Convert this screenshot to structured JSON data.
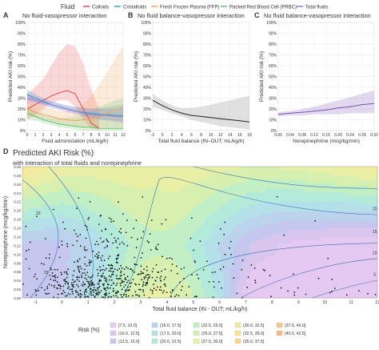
{
  "legend_top": {
    "title": "Fluid",
    "items": [
      {
        "label": "Colloids",
        "color": "#e8474c"
      },
      {
        "label": "Cristalloids",
        "color": "#3aa0c8"
      },
      {
        "label": "Fresh Frozen Plasma (FFP)",
        "color": "#f2a45a"
      },
      {
        "label": "Packed Red Blood Cell (PRBC)",
        "color": "#6cc36a"
      },
      {
        "label": "Total fluids",
        "color": "#9b7ad8"
      }
    ]
  },
  "chart_data": [
    {
      "panel": "A",
      "type": "line",
      "title": "No fluid-vasopressor interaction",
      "xlabel": "Fluid administation (mL/kg/h)",
      "ylabel": "Predicted AKI risk (%)",
      "xlim": [
        0,
        12
      ],
      "ylim": [
        0,
        100
      ],
      "xticks": [
        "0",
        "1",
        "2",
        "3",
        "4",
        "5",
        "6",
        "7",
        "8",
        "9",
        "10",
        "11",
        "12"
      ],
      "yticks": [
        "0%",
        "10%",
        "20%",
        "30%",
        "40%",
        "50%",
        "60%",
        "70%",
        "80%",
        "90%",
        "100%"
      ],
      "series": [
        {
          "name": "Colloids",
          "color": "#e8474c",
          "x": [
            0,
            1,
            2,
            3,
            4,
            5,
            6,
            7,
            8,
            9
          ],
          "y": [
            20,
            24,
            28,
            32,
            35,
            37,
            34,
            20,
            7,
            2
          ],
          "lower": [
            10,
            14,
            20,
            25,
            28,
            28,
            22,
            10,
            2,
            0
          ],
          "upper": [
            34,
            40,
            48,
            60,
            72,
            80,
            78,
            62,
            38,
            20
          ]
        },
        {
          "name": "Cristalloids",
          "color": "#3aa0c8",
          "x": [
            0,
            1,
            2,
            3,
            4,
            5,
            6,
            7,
            8,
            9,
            10,
            11,
            12
          ],
          "y": [
            33,
            30,
            27,
            24,
            22,
            20,
            18,
            17,
            16,
            15,
            15,
            14,
            14
          ],
          "lower": [
            28,
            26,
            24,
            22,
            20,
            18,
            16,
            14,
            12,
            11,
            10,
            9,
            8
          ],
          "upper": [
            38,
            34,
            30,
            27,
            25,
            23,
            22,
            21,
            21,
            21,
            22,
            23,
            24
          ]
        },
        {
          "name": "Fresh Frozen Plasma (FFP)",
          "color": "#f2a45a",
          "x": [
            0,
            1,
            2,
            3,
            4,
            5,
            6,
            7,
            8,
            9,
            10,
            11,
            12
          ],
          "y": [
            20,
            17,
            15,
            13,
            11,
            10,
            9,
            10,
            11,
            13,
            16,
            19,
            22
          ],
          "lower": [
            14,
            12,
            10,
            8,
            6,
            5,
            4,
            3,
            3,
            3,
            3,
            3,
            3
          ],
          "upper": [
            28,
            25,
            22,
            20,
            18,
            18,
            20,
            24,
            32,
            42,
            54,
            66,
            78
          ]
        },
        {
          "name": "Packed Red Blood Cell (PRBC)",
          "color": "#6cc36a",
          "x": [
            0,
            1,
            2,
            3,
            4,
            5,
            6,
            7,
            8,
            9,
            10,
            11,
            12
          ],
          "y": [
            16,
            13,
            10,
            8,
            6,
            5,
            4,
            3,
            3,
            2,
            2,
            2,
            2
          ],
          "lower": [
            11,
            9,
            7,
            5,
            3,
            2,
            1,
            0,
            0,
            0,
            0,
            0,
            0
          ],
          "upper": [
            22,
            18,
            14,
            12,
            11,
            12,
            13,
            15,
            18,
            22,
            25,
            28,
            30
          ]
        },
        {
          "name": "Total fluids",
          "color": "#9b7ad8",
          "x": [
            0,
            1,
            2,
            3,
            4,
            5,
            6,
            7,
            8,
            9,
            10,
            11,
            12
          ],
          "y": [
            30,
            28,
            26,
            24,
            22,
            20,
            18,
            16,
            15,
            14,
            14,
            13,
            13
          ],
          "lower": [
            26,
            25,
            23,
            21,
            19,
            17,
            15,
            13,
            11,
            10,
            9,
            8,
            7
          ],
          "upper": [
            34,
            32,
            29,
            27,
            25,
            23,
            22,
            21,
            20,
            20,
            20,
            20,
            21
          ]
        }
      ]
    },
    {
      "panel": "B",
      "type": "line",
      "title": "No fluid balance-vasopressor interaction",
      "xlabel": "Total fluid balance (IN–OUT; mL/kg/h)",
      "ylabel": "Predicted AKI risk (%)",
      "xlim": [
        -2,
        18
      ],
      "ylim": [
        0,
        100
      ],
      "xticks": [
        "-2",
        "0",
        "2",
        "4",
        "6",
        "8",
        "10",
        "12",
        "14",
        "16",
        "18"
      ],
      "yticks": [
        "0%",
        "10%",
        "20%",
        "30%",
        "40%",
        "50%",
        "60%",
        "70%",
        "80%",
        "90%",
        "100%"
      ],
      "series": [
        {
          "name": "",
          "color": "#222222",
          "x": [
            -2,
            0,
            2,
            4,
            6,
            8,
            10,
            12,
            14,
            16,
            18
          ],
          "y": [
            28,
            23,
            19,
            16,
            14,
            13,
            12,
            11,
            10,
            9,
            8
          ],
          "lower": [
            22,
            19,
            16,
            13,
            10,
            8,
            6,
            4,
            3,
            2,
            1
          ],
          "upper": [
            34,
            28,
            23,
            21,
            21,
            22,
            24,
            26,
            28,
            30,
            32
          ]
        }
      ]
    },
    {
      "panel": "C",
      "type": "line",
      "title": "No fluid balance-vasopressor interaction",
      "xlabel": "Norepinephrine (mcg/kg/min)",
      "ylabel": "Predicted AKI risk (%)",
      "xlim": [
        0,
        0.32
      ],
      "ylim": [
        0,
        100
      ],
      "xticks": [
        "0.00",
        "0.04",
        "0.08",
        "0.12",
        "0.16",
        "0.20",
        "0.24",
        "0.28",
        "0.32"
      ],
      "yticks": [
        "0%",
        "10%",
        "20%",
        "30%",
        "40%",
        "50%",
        "60%",
        "70%",
        "80%",
        "90%",
        "100%"
      ],
      "series": [
        {
          "name": "",
          "color": "#7a52b0",
          "x": [
            0,
            0.04,
            0.08,
            0.12,
            0.16,
            0.2,
            0.24,
            0.28,
            0.32
          ],
          "y": [
            15,
            16,
            17,
            18,
            19,
            21,
            22,
            24,
            25
          ],
          "lower": [
            13,
            14,
            14,
            15,
            15,
            15,
            16,
            16,
            16
          ],
          "upper": [
            17,
            18,
            20,
            22,
            25,
            28,
            31,
            34,
            37
          ]
        }
      ]
    },
    {
      "panel": "D",
      "type": "scatter",
      "title": "Predicted AKI Risk (%)",
      "subtitle": "with interaction of total fluids and norepinephrine",
      "xlabel": "Total fluid balance (IN - OUT; mL/kg/h)",
      "ylabel": "Norepinephrine (mcg/kg/min)",
      "xlim": [
        -1.5,
        12
      ],
      "ylim": [
        0,
        0.3
      ],
      "xticks": [
        "-1",
        "0",
        "1",
        "2",
        "3",
        "4",
        "5",
        "6",
        "7",
        "8",
        "9",
        "10",
        "11",
        "12"
      ],
      "yticks": [
        "0.00",
        "0.02",
        "0.04",
        "0.06",
        "0.08",
        "0.10",
        "0.12",
        "0.14",
        "0.16",
        "0.18",
        "0.20",
        "0.22",
        "0.24",
        "0.26",
        "0.28",
        "0.30"
      ],
      "contour_labels": [
        "20",
        "25",
        "20",
        "15",
        "10",
        "5",
        "30",
        "25",
        "20",
        "15"
      ],
      "legend_title": "Risk (%)",
      "legend": [
        {
          "label": "[7.5, 10.0]",
          "color": "#e6c9f2"
        },
        {
          "label": "(10.0, 12.5]",
          "color": "#d9c6ef"
        },
        {
          "label": "(12.5, 15.0]",
          "color": "#c5c7ee"
        },
        {
          "label": "(15.0, 17.5]",
          "color": "#bcd3ee"
        },
        {
          "label": "(17.5, 20.0]",
          "color": "#b4e0ea"
        },
        {
          "label": "(20.0, 22.5]",
          "color": "#b4ead9"
        },
        {
          "label": "(22.5, 25.0]",
          "color": "#c2efc4"
        },
        {
          "label": "(25.0, 27.5]",
          "color": "#d7f0b0"
        },
        {
          "label": "(27.5, 30.0]",
          "color": "#e9f0a6"
        },
        {
          "label": "(30.0, 32.5]",
          "color": "#f3ec9f"
        },
        {
          "label": "(32.5, 35.0]",
          "color": "#f7e29a"
        },
        {
          "label": "(35.0, 37.5]",
          "color": "#f6d492"
        },
        {
          "label": "(37.5, 40.0]",
          "color": "#f4c68c"
        },
        {
          "label": "(40.0, 42.5]",
          "color": "#f2b887"
        }
      ]
    }
  ]
}
